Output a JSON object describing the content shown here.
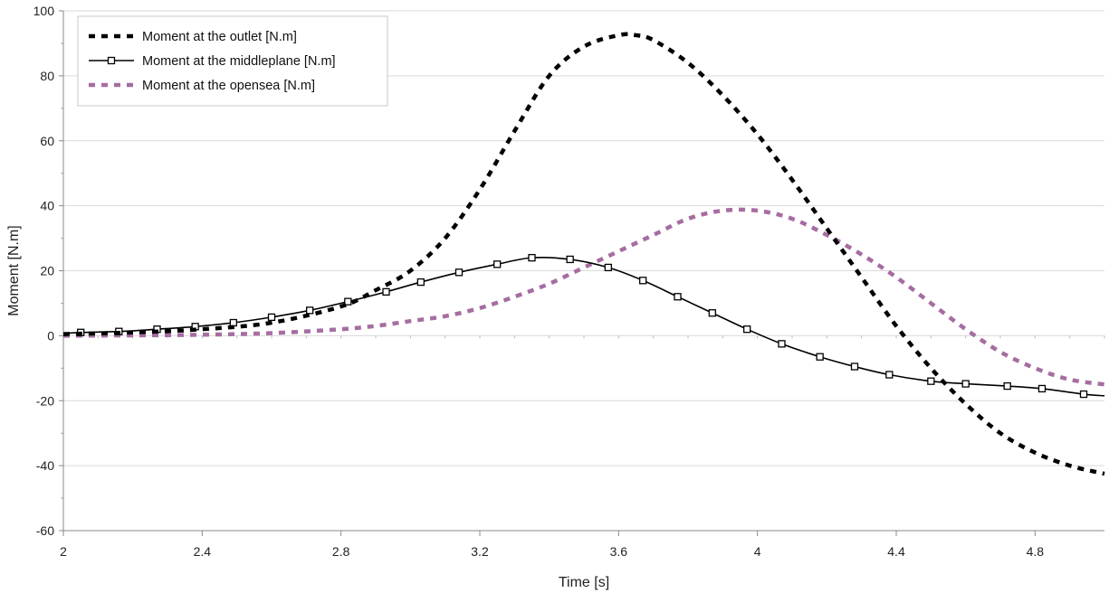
{
  "chart_data": {
    "type": "line",
    "xlabel": "Time [s]",
    "ylabel": "Moment [N.m]",
    "xlim": [
      2,
      5
    ],
    "ylim": [
      -60,
      100
    ],
    "x_ticks": [
      2,
      2.4,
      2.8,
      3.2,
      3.6,
      4,
      4.4,
      4.8
    ],
    "x_tick_labels": [
      "2",
      "2.4",
      "2.8",
      "3.2",
      "3.6",
      "4",
      "4.4",
      "4.8"
    ],
    "y_ticks": [
      -60,
      -40,
      -20,
      0,
      20,
      40,
      60,
      80,
      100
    ],
    "y_tick_labels": [
      "-60",
      "-40",
      "-20",
      "0",
      "20",
      "40",
      "60",
      "80",
      "100"
    ],
    "grid": "horizontal",
    "legend": "top-left",
    "series": [
      {
        "name": "Moment at the outlet [N.m]",
        "color": "#000000",
        "style": "dotted",
        "x": [
          2.0,
          2.2,
          2.4,
          2.6,
          2.8,
          2.9,
          3.0,
          3.1,
          3.2,
          3.3,
          3.4,
          3.5,
          3.6,
          3.65,
          3.7,
          3.8,
          3.9,
          4.0,
          4.1,
          4.2,
          4.3,
          4.4,
          4.5,
          4.6,
          4.7,
          4.8,
          4.9,
          5.0
        ],
        "y": [
          0.5,
          1,
          2,
          4,
          9,
          14,
          20,
          30,
          45,
          63,
          80,
          89,
          92.5,
          92.5,
          91,
          84,
          74,
          62,
          48,
          33,
          18,
          3,
          -10,
          -21,
          -30,
          -36,
          -40,
          -42.5
        ]
      },
      {
        "name": "Moment at the middleplane [N.m]",
        "color": "#000000",
        "style": "solid-square-markers",
        "x": [
          2.0,
          2.05,
          2.16,
          2.27,
          2.38,
          2.49,
          2.6,
          2.71,
          2.82,
          2.93,
          3.03,
          3.14,
          3.25,
          3.35,
          3.46,
          3.57,
          3.67,
          3.77,
          3.87,
          3.97,
          4.07,
          4.18,
          4.28,
          4.38,
          4.5,
          4.6,
          4.72,
          4.82,
          4.94,
          5.0
        ],
        "y": [
          0.7,
          1,
          1.3,
          2,
          2.8,
          4,
          5.7,
          7.8,
          10.5,
          13.5,
          16.5,
          19.5,
          22,
          24,
          23.5,
          21,
          17,
          12,
          7,
          2,
          -2.5,
          -6.5,
          -9.5,
          -12,
          -14,
          -14.8,
          -15.5,
          -16.3,
          -18,
          -18.5
        ]
      },
      {
        "name": "Moment at the opensea [N.m]",
        "color": "#a66da1",
        "style": "dotted",
        "x": [
          2.0,
          2.2,
          2.4,
          2.6,
          2.8,
          2.9,
          3.0,
          3.1,
          3.2,
          3.3,
          3.4,
          3.5,
          3.6,
          3.7,
          3.8,
          3.9,
          4.0,
          4.1,
          4.2,
          4.3,
          4.4,
          4.5,
          4.6,
          4.7,
          4.8,
          4.9,
          5.0
        ],
        "y": [
          0,
          0.1,
          0.3,
          0.8,
          2,
          3,
          4.5,
          6,
          8.5,
          12,
          16,
          21,
          26,
          31,
          36,
          38.5,
          38.5,
          36,
          31,
          25,
          18,
          10,
          2,
          -5,
          -10,
          -13.5,
          -15
        ]
      }
    ]
  }
}
